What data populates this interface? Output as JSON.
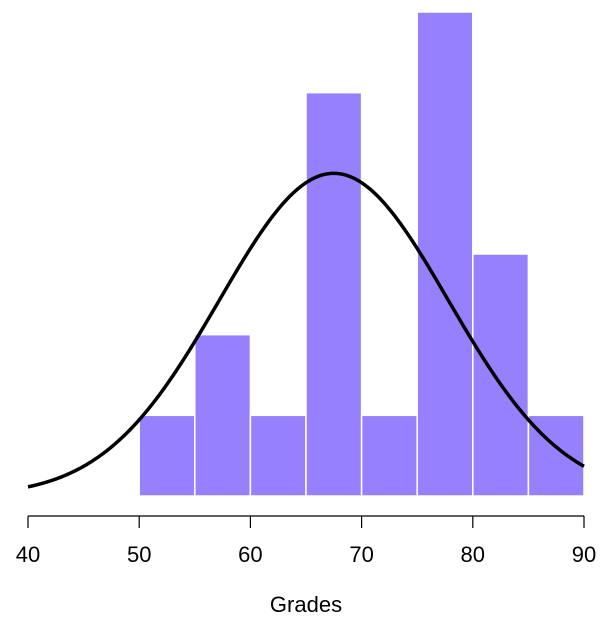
{
  "chart_data": {
    "type": "bar",
    "title": "",
    "xlabel": "Grades",
    "ylabel": "",
    "xlim": [
      40,
      90
    ],
    "x_ticks": [
      40,
      50,
      60,
      70,
      80,
      90
    ],
    "bin_edges": [
      50,
      55,
      60,
      65,
      70,
      75,
      80,
      85,
      90
    ],
    "counts": [
      1,
      2,
      1,
      5,
      1,
      6,
      3,
      1
    ],
    "ylim": [
      0,
      6
    ],
    "bar_color": "#9680fc",
    "bar_edge_color": "#ffffff",
    "overlay_curve": {
      "type": "line",
      "name": "",
      "mean": 67.5,
      "sd": 10.3,
      "peak_height": 4,
      "color": "#000000"
    },
    "grid": false,
    "legend": "none"
  }
}
